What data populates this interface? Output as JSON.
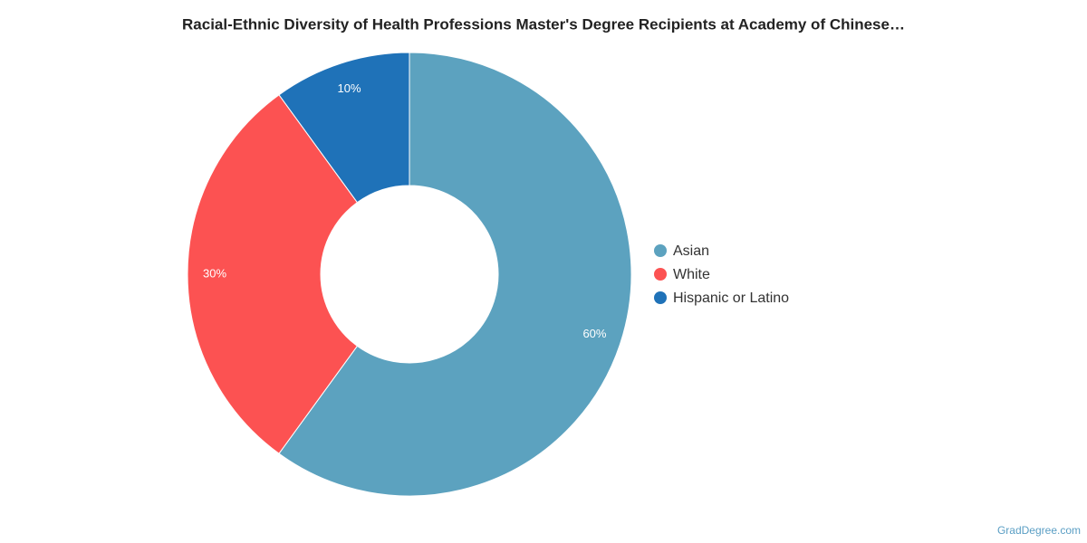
{
  "chart_data": {
    "type": "donut",
    "title": "Racial-Ethnic Diversity of Health Professions Master's Degree Recipients at Academy of Chinese…",
    "categories": [
      "Asian",
      "White",
      "Hispanic or Latino"
    ],
    "values": [
      60,
      30,
      10
    ],
    "value_labels": [
      "60%",
      "30%",
      "10%"
    ],
    "colors": [
      "#5ca2bf",
      "#fc5252",
      "#1f72b8"
    ],
    "legend": "right",
    "source": "GradDegree.com"
  }
}
